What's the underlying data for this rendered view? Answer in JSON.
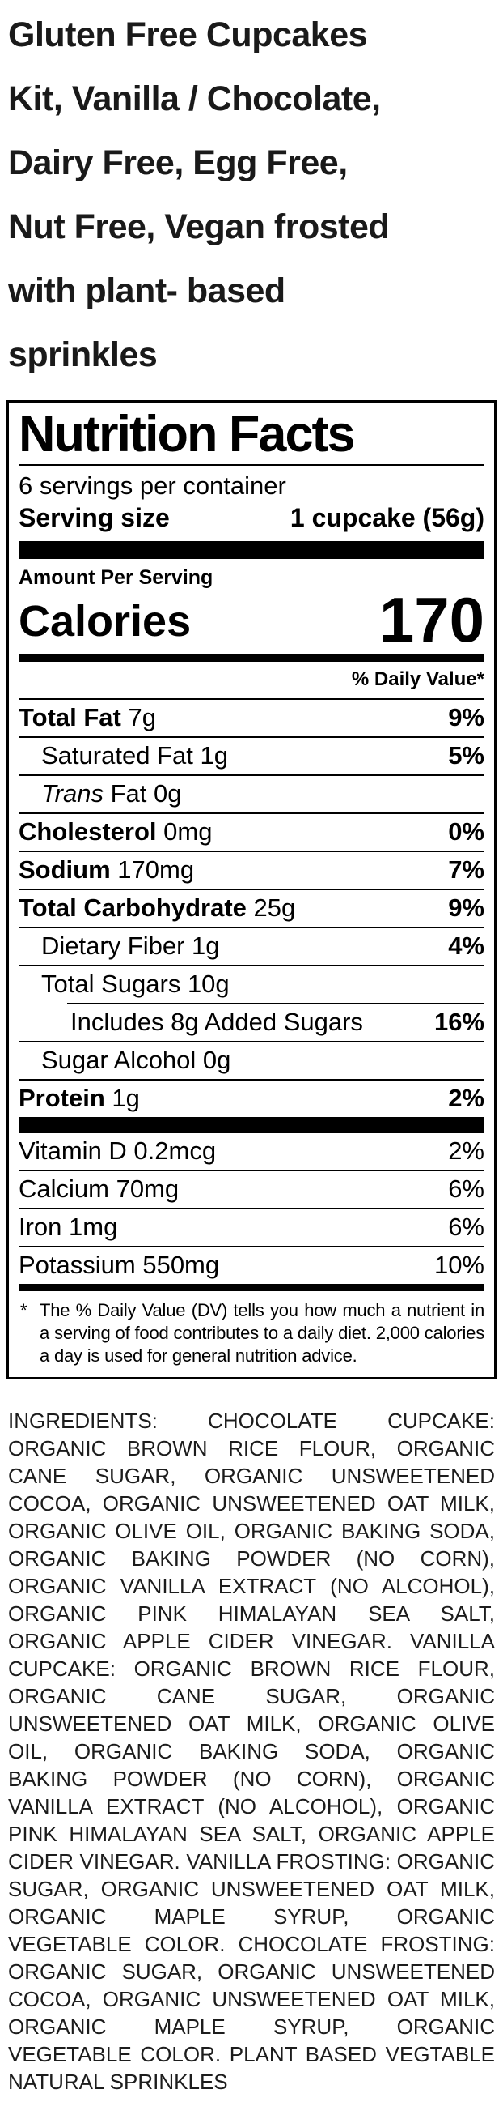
{
  "product": {
    "title_lines": [
      "Gluten Free Cupcakes",
      "Kit, Vanilla / Chocolate,",
      "Dairy Free, Egg Free,",
      "Nut Free, Vegan frosted",
      "with plant- based",
      "sprinkles"
    ]
  },
  "nutrition_label": {
    "title": "Nutrition Facts",
    "servings_per_container": "6 servings per container",
    "serving_size_label": "Serving size",
    "serving_size_value": "1 cupcake (56g)",
    "amount_per_serving": "Amount Per Serving",
    "calories_label": "Calories",
    "calories_value": "170",
    "daily_value_header": "% Daily Value*",
    "rows": [
      {
        "name": "Total Fat",
        "name_italic": "",
        "amount": "7g",
        "dv": "9%",
        "indent": 0,
        "bold": true,
        "rule_indent": false
      },
      {
        "name": "Saturated Fat",
        "name_italic": "",
        "amount": "1g",
        "dv": "5%",
        "indent": 1,
        "bold": false,
        "rule_indent": false
      },
      {
        "name": " Fat",
        "name_italic": "Trans",
        "amount": "0g",
        "dv": "",
        "indent": 1,
        "bold": false,
        "rule_indent": false
      },
      {
        "name": "Cholesterol",
        "name_italic": "",
        "amount": "0mg",
        "dv": "0%",
        "indent": 0,
        "bold": true,
        "rule_indent": false
      },
      {
        "name": "Sodium",
        "name_italic": "",
        "amount": "170mg",
        "dv": "7%",
        "indent": 0,
        "bold": true,
        "rule_indent": false
      },
      {
        "name": "Total Carbohydrate",
        "name_italic": "",
        "amount": "25g",
        "dv": "9%",
        "indent": 0,
        "bold": true,
        "rule_indent": false
      },
      {
        "name": "Dietary Fiber",
        "name_italic": "",
        "amount": "1g",
        "dv": "4%",
        "indent": 1,
        "bold": false,
        "rule_indent": false
      },
      {
        "name": "Total Sugars",
        "name_italic": "",
        "amount": "10g",
        "dv": "",
        "indent": 1,
        "bold": false,
        "rule_indent": false
      },
      {
        "name": "Includes 8g Added Sugars",
        "name_italic": "",
        "amount": "",
        "dv": "16%",
        "indent": 2,
        "bold": false,
        "rule_indent": true
      },
      {
        "name": "Sugar Alcohol",
        "name_italic": "",
        "amount": "0g",
        "dv": "",
        "indent": 1,
        "bold": false,
        "rule_indent": false
      },
      {
        "name": "Protein",
        "name_italic": "",
        "amount": "1g",
        "dv": "2%",
        "indent": 0,
        "bold": true,
        "rule_indent": false
      }
    ],
    "vitamins": [
      {
        "name": "Vitamin D",
        "amount": "0.2mcg",
        "dv": "2%"
      },
      {
        "name": "Calcium",
        "amount": "70mg",
        "dv": "6%"
      },
      {
        "name": "Iron",
        "amount": "1mg",
        "dv": "6%"
      },
      {
        "name": "Potassium",
        "amount": "550mg",
        "dv": "10%"
      }
    ],
    "footnote_marker": "*",
    "footnote_text": "The % Daily Value (DV) tells you how much a nutrient in a serving of food contributes to a daily diet. 2,000 calories a day is used for general nutrition advice."
  },
  "ingredients": {
    "text": "INGREDIENTS: CHOCOLATE CUPCAKE: ORGANIC BROWN RICE FLOUR, ORGANIC CANE SUGAR, ORGANIC UNSWEETENED COCOA, ORGANIC UNSWEETENED OAT MILK, ORGANIC OLIVE OIL, ORGANIC BAKING SODA, ORGANIC BAKING POWDER (NO CORN), ORGANIC VANILLA EXTRACT (NO ALCOHOL), ORGANIC PINK HIMALAYAN SEA SALT, ORGANIC APPLE CIDER VINEGAR. VANILLA CUPCAKE: ORGANIC BROWN RICE FLOUR, ORGANIC CANE SUGAR, ORGANIC UNSWEETENED OAT MILK, ORGANIC OLIVE OIL, ORGANIC BAKING SODA, ORGANIC BAKING POWDER (NO CORN), ORGANIC VANILLA EXTRACT (NO ALCOHOL), ORGANIC PINK HIMALAYAN SEA SALT, ORGANIC APPLE CIDER VINEGAR. VANILLA FROSTING: ORGANIC SUGAR, ORGANIC UNSWEETENED OAT MILK, ORGANIC MAPLE SYRUP, ORGANIC VEGETABLE COLOR. CHOCOLATE FROSTING: ORGANIC SUGAR, ORGANIC UNSWEETENED COCOA, ORGANIC UNSWEETENED OAT MILK, ORGANIC MAPLE SYRUP, ORGANIC VEGETABLE COLOR. PLANT BASED VEGTABLE NATURAL SPRINKLES"
  }
}
